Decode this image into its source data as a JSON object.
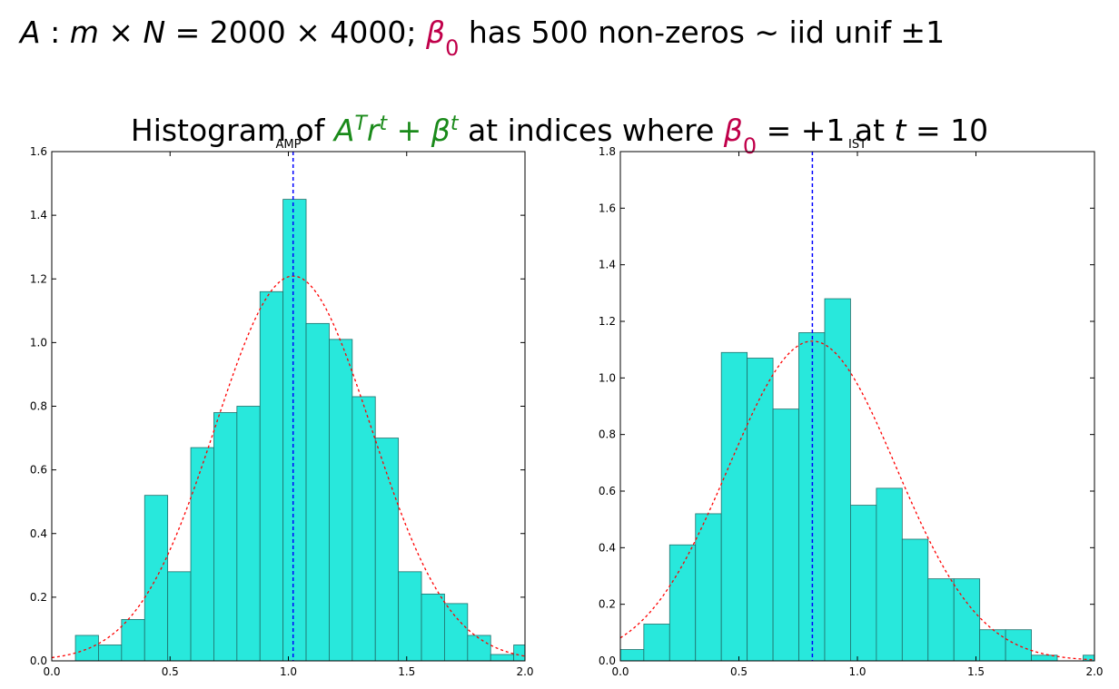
{
  "heading": {
    "line1": [
      {
        "text": "A",
        "italic": true
      },
      {
        "text": " : "
      },
      {
        "text": "m",
        "italic": true
      },
      {
        "text": " × "
      },
      {
        "text": "N",
        "italic": true
      },
      {
        "text": " = 2000 × 4000; "
      },
      {
        "text": "β",
        "italic": true,
        "color": "#c0004a"
      },
      {
        "text": "0",
        "sub": true,
        "color": "#c0004a"
      },
      {
        "text": " has 500 non-zeros ∼ iid unif ±1"
      }
    ],
    "line2": [
      {
        "text": "Histogram of "
      },
      {
        "text": "A",
        "italic": true,
        "color": "#1a8a1a"
      },
      {
        "text": "T",
        "italic": true,
        "sup": true,
        "color": "#1a8a1a"
      },
      {
        "text": "r",
        "italic": true,
        "color": "#1a8a1a"
      },
      {
        "text": "t",
        "italic": true,
        "sup": true,
        "color": "#1a8a1a"
      },
      {
        "text": " + ",
        "color": "#1a8a1a"
      },
      {
        "text": "β",
        "italic": true,
        "color": "#1a8a1a"
      },
      {
        "text": "t",
        "italic": true,
        "sup": true,
        "color": "#1a8a1a"
      },
      {
        "text": " at indices where "
      },
      {
        "text": "β",
        "italic": true,
        "color": "#c0004a"
      },
      {
        "text": "0",
        "sub": true,
        "color": "#c0004a"
      },
      {
        "text": " = +1 at "
      },
      {
        "text": "t",
        "italic": true
      },
      {
        "text": " = 10"
      }
    ]
  },
  "chart_data": [
    {
      "type": "histogram",
      "title": "AMP",
      "bins": [
        0.1,
        0.1975,
        0.295,
        0.3925,
        0.49,
        0.5875,
        0.685,
        0.7825,
        0.88,
        0.9775,
        1.075,
        1.1725,
        1.27,
        1.3675,
        1.465,
        1.5625,
        1.66,
        1.7575,
        1.855,
        1.9525,
        2.05
      ],
      "values": [
        0.08,
        0.05,
        0.13,
        0.52,
        0.28,
        0.67,
        0.78,
        0.8,
        1.16,
        1.45,
        1.06,
        1.01,
        0.83,
        0.7,
        0.28,
        0.21,
        0.18,
        0.08,
        0.02,
        0.05
      ],
      "color": "#28e8dc",
      "xlim": [
        0,
        2
      ],
      "ylim": [
        0,
        1.6
      ],
      "xticks": [
        {
          "value": 0,
          "label": "0.0"
        },
        {
          "value": 0.5,
          "label": "0.5"
        },
        {
          "value": 1,
          "label": "1.0"
        },
        {
          "value": 1.5,
          "label": "1.5"
        },
        {
          "value": 2,
          "label": "2.0"
        }
      ],
      "yticks": [
        {
          "value": 0,
          "label": "0.0"
        },
        {
          "value": 0.2,
          "label": "0.2"
        },
        {
          "value": 0.4,
          "label": "0.4"
        },
        {
          "value": 0.6,
          "label": "0.6"
        },
        {
          "value": 0.8,
          "label": "0.8"
        },
        {
          "value": 1,
          "label": "1.0"
        },
        {
          "value": 1.2,
          "label": "1.2"
        },
        {
          "value": 1.4,
          "label": "1.4"
        },
        {
          "value": 1.6,
          "label": "1.6"
        }
      ],
      "vline": {
        "x": 1.02,
        "color": "#0000ff"
      },
      "fit": {
        "mean": 1.02,
        "std": 0.33,
        "color": "#ff0000"
      }
    },
    {
      "type": "histogram",
      "title": "IST",
      "bins": [
        -0.01,
        0.099,
        0.208,
        0.317,
        0.426,
        0.535,
        0.644,
        0.753,
        0.862,
        0.971,
        1.08,
        1.189,
        1.298,
        1.407,
        1.516,
        1.625,
        1.734,
        1.843,
        1.952,
        2.061
      ],
      "values": [
        0.04,
        0.13,
        0.41,
        0.52,
        1.09,
        1.07,
        0.89,
        1.16,
        1.28,
        0.55,
        0.61,
        0.43,
        0.29,
        0.29,
        0.11,
        0.11,
        0.02,
        0,
        0.02
      ],
      "color": "#28e8dc",
      "xlim": [
        0,
        2
      ],
      "ylim": [
        0,
        1.8
      ],
      "xticks": [
        {
          "value": 0,
          "label": "0.0"
        },
        {
          "value": 0.5,
          "label": "0.5"
        },
        {
          "value": 1,
          "label": "1.0"
        },
        {
          "value": 1.5,
          "label": "1.5"
        },
        {
          "value": 2,
          "label": "2.0"
        }
      ],
      "yticks": [
        {
          "value": 0,
          "label": "0.0"
        },
        {
          "value": 0.2,
          "label": "0.2"
        },
        {
          "value": 0.4,
          "label": "0.4"
        },
        {
          "value": 0.6,
          "label": "0.6"
        },
        {
          "value": 0.8,
          "label": "0.8"
        },
        {
          "value": 1,
          "label": "1.0"
        },
        {
          "value": 1.2,
          "label": "1.2"
        },
        {
          "value": 1.4,
          "label": "1.4"
        },
        {
          "value": 1.6,
          "label": "1.6"
        },
        {
          "value": 1.8,
          "label": "1.8"
        }
      ],
      "vline": {
        "x": 0.81,
        "color": "#0000ff"
      },
      "fit": {
        "mean": 0.81,
        "std": 0.353,
        "color": "#ff0000"
      }
    }
  ]
}
